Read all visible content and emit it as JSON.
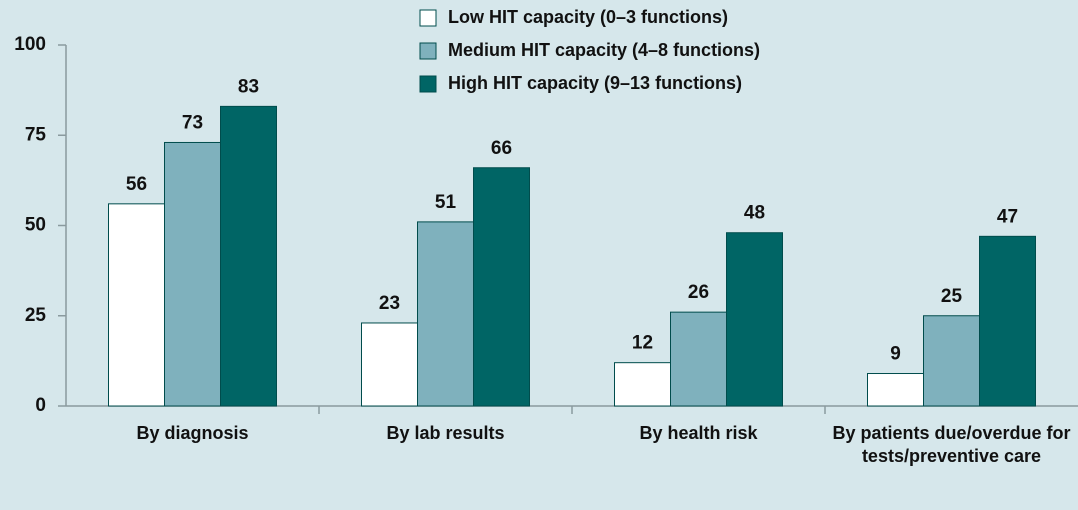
{
  "chart_data": {
    "type": "bar",
    "categories": [
      "By diagnosis",
      "By lab results",
      "By health risk",
      "By patients due/overdue for tests/preventive care"
    ],
    "series": [
      {
        "name": "Low HIT capacity (0–3 functions)",
        "color": "#ffffff",
        "values": [
          56,
          23,
          12,
          9
        ]
      },
      {
        "name": "Medium HIT capacity (4–8 functions)",
        "color": "#7fb1bd",
        "values": [
          73,
          51,
          26,
          25
        ]
      },
      {
        "name": "High HIT capacity (9–13 functions)",
        "color": "#006565",
        "values": [
          83,
          66,
          48,
          47
        ]
      }
    ],
    "ylim": [
      0,
      100
    ],
    "yticks": [
      0,
      25,
      50,
      75,
      100
    ],
    "legend": "top"
  }
}
